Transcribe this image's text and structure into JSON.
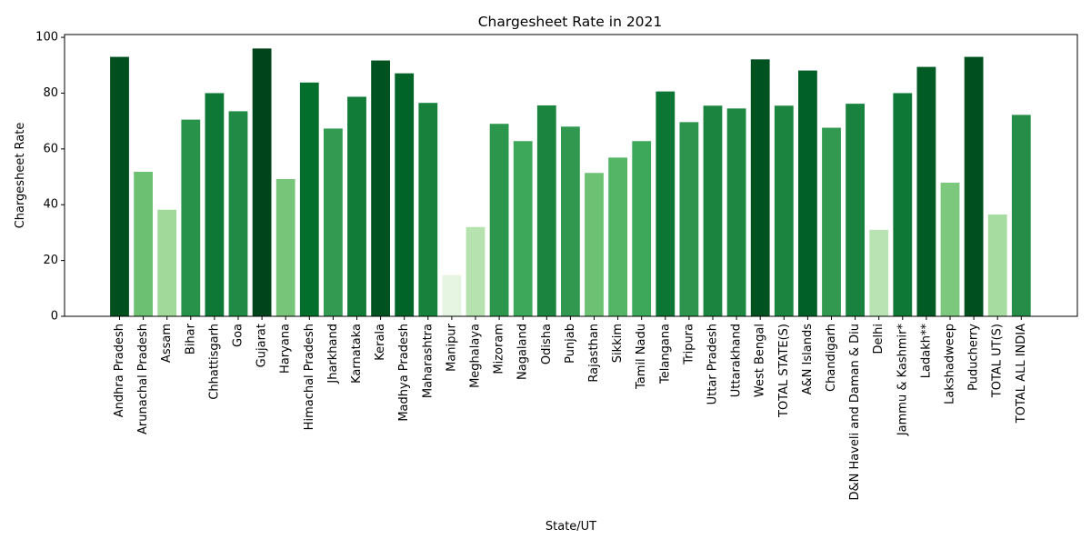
{
  "chart_data": {
    "type": "bar",
    "title": "Chargesheet Rate in 2021",
    "xlabel": "State/UT",
    "ylabel": "Chargesheet Rate",
    "ylim": [
      0,
      101
    ],
    "yticks": [
      0,
      20,
      40,
      60,
      80,
      100
    ],
    "grid": false,
    "legend": "none",
    "color_scale": {
      "low": "#e5f5e0",
      "high": "#00441b",
      "name": "Greens"
    },
    "categories": [
      "Andhra Pradesh",
      "Arunachal Pradesh",
      "Assam",
      "Bihar",
      "Chhattisgarh",
      "Goa",
      "Gujarat",
      "Haryana",
      "Himachal Pradesh",
      "Jharkhand",
      "Karnataka",
      "Kerala",
      "Madhya Pradesh",
      "Maharashtra",
      "Manipur",
      "Meghalaya",
      "Mizoram",
      "Nagaland",
      "Odisha",
      "Punjab",
      "Rajasthan",
      "Sikkim",
      "Tamil Nadu",
      "Telangana",
      "Tripura",
      "Uttar Pradesh",
      "Uttarakhand",
      "West Bengal",
      "TOTAL STATE(S)",
      "A&N Islands",
      "Chandigarh",
      "D&N Haveli and Daman & Diu",
      "Delhi",
      "Jammu & Kashmir*",
      "Ladakh**",
      "Lakshadweep",
      "Puducherry",
      "TOTAL UT(S)",
      "TOTAL ALL INDIA"
    ],
    "values": [
      93.0,
      51.8,
      38.2,
      70.5,
      80.0,
      73.5,
      96.0,
      49.2,
      83.8,
      67.3,
      78.7,
      91.7,
      87.1,
      76.5,
      14.8,
      32.0,
      69.0,
      62.8,
      75.6,
      68.0,
      51.4,
      56.9,
      62.8,
      80.6,
      69.6,
      75.5,
      74.5,
      92.1,
      75.5,
      88.1,
      67.6,
      76.2,
      31.0,
      80.0,
      89.4,
      47.9,
      93.0,
      36.5,
      72.2
    ]
  }
}
